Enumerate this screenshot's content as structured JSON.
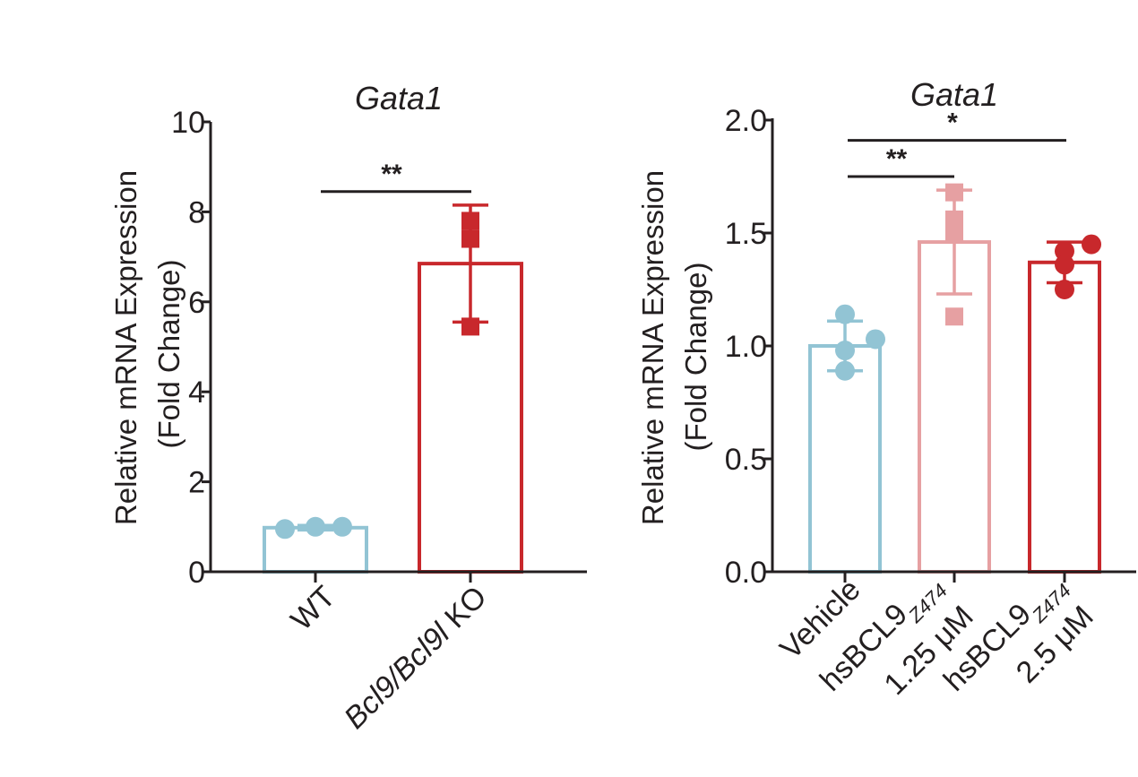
{
  "colors": {
    "wt": "#92c4d4",
    "ko": "#c8282c",
    "vehicle": "#92c4d4",
    "low_dose": "#e6a0a2",
    "high_dose": "#c8282c",
    "axis": "#231f20"
  },
  "chart_data": [
    {
      "type": "bar",
      "title": "Gata1",
      "ylabel_line1": "Relative mRNA Expression",
      "ylabel_line2": "(Fold Change)",
      "ylim": [
        0,
        10
      ],
      "yticks": [
        "0",
        "2",
        "4",
        "6",
        "8",
        "10"
      ],
      "yticks_values": [
        0,
        2,
        4,
        6,
        8,
        10
      ],
      "categories": [
        "WT",
        "KO"
      ],
      "category_labels": [
        {
          "main": "WT"
        },
        {
          "italic": "Bcl9/Bcl9l",
          "main": " KO"
        }
      ],
      "values": [
        0.98,
        6.85
      ],
      "error": [
        0.05,
        1.3
      ],
      "points": [
        [
          0.95,
          1.0,
          1.0
        ],
        [
          7.8,
          7.4,
          5.45
        ]
      ],
      "markers": [
        "circle",
        "square"
      ],
      "significance": [
        {
          "from": 0,
          "to": 1,
          "label": "**",
          "y": 8.45
        }
      ]
    },
    {
      "type": "bar",
      "title": "Gata1",
      "ylabel_line1": "Relative mRNA Expression",
      "ylabel_line2": "(Fold Change)",
      "ylim": [
        0,
        2.0
      ],
      "yticks": [
        "0.0",
        "0.5",
        "1.0",
        "1.5",
        "2.0"
      ],
      "yticks_values": [
        0,
        0.5,
        1.0,
        1.5,
        2.0
      ],
      "categories": [
        "Vehicle",
        "hsBCL9 Z474 1.25 μM",
        "hsBCL9 Z474 2.5 μM"
      ],
      "category_labels": [
        {
          "line1": "Vehicle"
        },
        {
          "line1": "hsBCL9",
          "sub": "Z474",
          "line2": "1.25 μM"
        },
        {
          "line1": "hsBCL9",
          "sub": "Z474",
          "line2": "2.5 μM"
        }
      ],
      "values": [
        1.0,
        1.46,
        1.37
      ],
      "error": [
        0.11,
        0.23,
        0.09
      ],
      "points": [
        [
          1.14,
          1.03,
          0.98,
          0.89
        ],
        [
          1.68,
          1.56,
          1.5,
          1.13
        ],
        [
          1.45,
          1.42,
          1.36,
          1.25
        ]
      ],
      "markers": [
        "circle",
        "square",
        "circle"
      ],
      "significance": [
        {
          "from": 0,
          "to": 1,
          "label": "**",
          "y": 1.75
        },
        {
          "from": 0,
          "to": 2,
          "label": "*",
          "y": 1.91
        }
      ]
    }
  ]
}
